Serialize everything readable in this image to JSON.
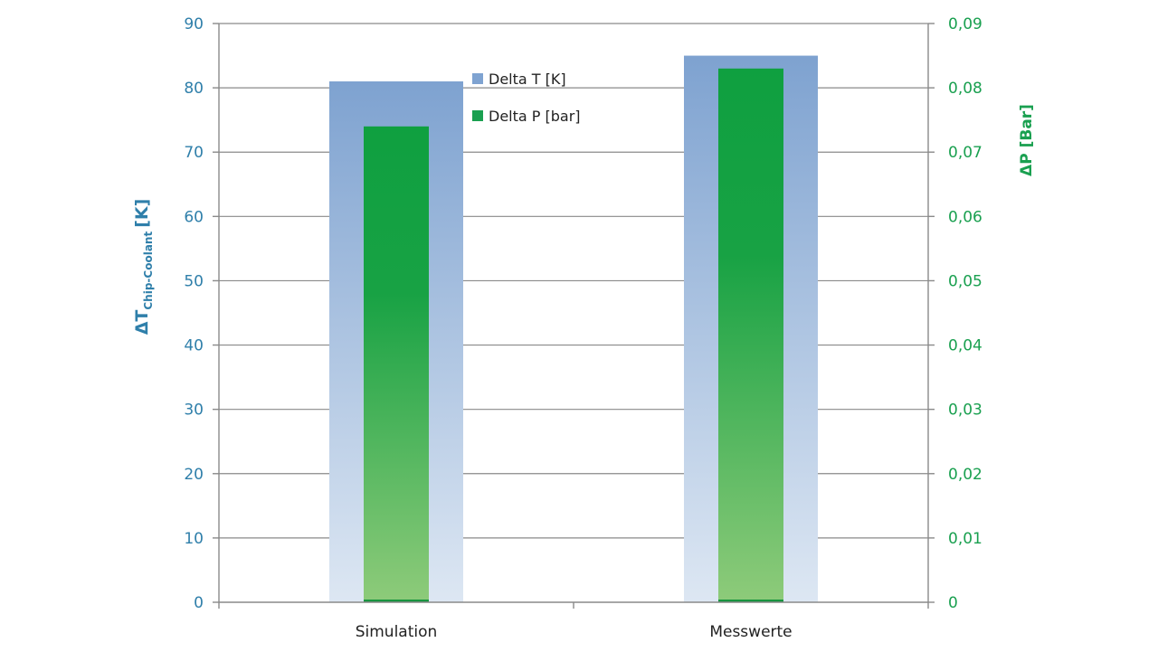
{
  "chart_data": {
    "type": "bar",
    "categories": [
      "Simulation",
      "Messwerte"
    ],
    "series": [
      {
        "name": "Delta T [K]",
        "axis": "left",
        "values": [
          81,
          85
        ],
        "color": "#7fa3d1"
      },
      {
        "name": "Delta P [bar]",
        "axis": "right",
        "values": [
          0.074,
          0.083
        ],
        "color": "#1aa050"
      }
    ],
    "y_left": {
      "label_main": "ΔT",
      "label_sub": "Chip-Coolant",
      "label_unit": "[K]",
      "lim": [
        0,
        90
      ],
      "ticks": [
        "0",
        "10",
        "20",
        "30",
        "40",
        "50",
        "60",
        "70",
        "80",
        "90"
      ],
      "tick_values": [
        0,
        10,
        20,
        30,
        40,
        50,
        60,
        70,
        80,
        90
      ],
      "color": "#2f7faa"
    },
    "y_right": {
      "label": "ΔP [Bar]",
      "lim": [
        0,
        0.09
      ],
      "ticks": [
        "0",
        "0,01",
        "0,02",
        "0,03",
        "0,04",
        "0,05",
        "0,06",
        "0,07",
        "0,08",
        "0,09"
      ],
      "tick_values": [
        0,
        0.01,
        0.02,
        0.03,
        0.04,
        0.05,
        0.06,
        0.07,
        0.08,
        0.09
      ],
      "color": "#1aa050"
    },
    "grid": true,
    "legend": {
      "position": "top-center",
      "entries": [
        "Delta T [K]",
        "Delta P [bar]"
      ]
    }
  }
}
